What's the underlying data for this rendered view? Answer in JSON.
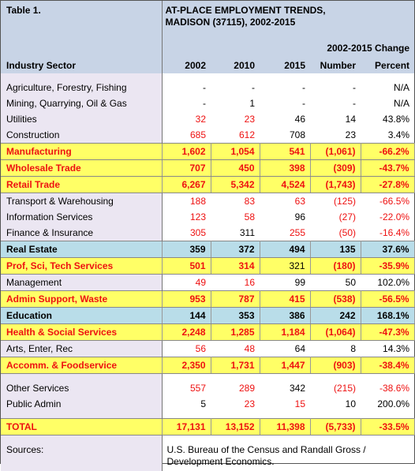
{
  "header": {
    "label": "Table 1.",
    "title": [
      "AT-PLACE EMPLOYMENT TRENDS,",
      "MADISON (37115), 2002-2015"
    ],
    "change": "2002-2015 Change",
    "columns": [
      "Industry Sector",
      "2002",
      "2010",
      "2015",
      "Number",
      "Percent"
    ]
  },
  "groups": [
    [
      {
        "cells": [
          "Agriculture, Forestry, Fishing",
          "-",
          "-",
          "-",
          "-",
          "N/A"
        ],
        "style": "plain",
        "red": []
      },
      {
        "cells": [
          "Mining, Quarrying, Oil & Gas",
          "-",
          "1",
          "-",
          "-",
          "N/A"
        ],
        "style": "plain",
        "red": []
      },
      {
        "cells": [
          "Utilities",
          "32",
          "23",
          "46",
          "14",
          "43.8%"
        ],
        "style": "plain",
        "red": [
          1,
          2
        ]
      },
      {
        "cells": [
          "Construction",
          "685",
          "612",
          "708",
          "23",
          "3.4%"
        ],
        "style": "plain",
        "red": [
          1,
          2
        ]
      },
      {
        "cells": [
          "Manufacturing",
          "1,602",
          "1,054",
          "541",
          "(1,061)",
          "-66.2%"
        ],
        "style": "yellow",
        "red": [
          0,
          1,
          2,
          3,
          4,
          5
        ]
      },
      {
        "cells": [
          "Wholesale Trade",
          "707",
          "450",
          "398",
          "(309)",
          "-43.7%"
        ],
        "style": "yellow",
        "red": [
          0,
          1,
          2,
          3,
          4,
          5
        ]
      },
      {
        "cells": [
          "Retail Trade",
          "6,267",
          "5,342",
          "4,524",
          "(1,743)",
          "-27.8%"
        ],
        "style": "yellow",
        "red": [
          0,
          1,
          2,
          3,
          4,
          5
        ]
      },
      {
        "cells": [
          "Transport & Warehousing",
          "188",
          "83",
          "63",
          "(125)",
          "-66.5%"
        ],
        "style": "plain",
        "red": [
          1,
          2,
          3,
          4,
          5
        ]
      },
      {
        "cells": [
          "Information Services",
          "123",
          "58",
          "96",
          "(27)",
          "-22.0%"
        ],
        "style": "plain",
        "red": [
          1,
          2,
          4,
          5
        ]
      },
      {
        "cells": [
          "Finance & Insurance",
          "305",
          "311",
          "255",
          "(50)",
          "-16.4%"
        ],
        "style": "plain",
        "red": [
          1,
          3,
          4,
          5
        ]
      },
      {
        "cells": [
          "Real Estate",
          "359",
          "372",
          "494",
          "135",
          "37.6%"
        ],
        "style": "blue",
        "red": []
      },
      {
        "cells": [
          "Prof, Sci, Tech Services",
          "501",
          "314",
          "321",
          "(180)",
          "-35.9%"
        ],
        "style": "yellow",
        "red": [
          0,
          1,
          2,
          4,
          5
        ]
      },
      {
        "cells": [
          "Management",
          "49",
          "16",
          "99",
          "50",
          "102.0%"
        ],
        "style": "plain",
        "red": [
          1,
          2
        ]
      },
      {
        "cells": [
          "Admin Support, Waste",
          "953",
          "787",
          "415",
          "(538)",
          "-56.5%"
        ],
        "style": "yellow",
        "red": [
          0,
          1,
          2,
          3,
          4,
          5
        ]
      },
      {
        "cells": [
          "Education",
          "144",
          "353",
          "386",
          "242",
          "168.1%"
        ],
        "style": "blue",
        "red": []
      },
      {
        "cells": [
          "Health & Social Services",
          "2,248",
          "1,285",
          "1,184",
          "(1,064)",
          "-47.3%"
        ],
        "style": "yellow",
        "red": [
          0,
          1,
          2,
          3,
          4,
          5
        ]
      },
      {
        "cells": [
          "Arts, Enter, Rec",
          "56",
          "48",
          "64",
          "8",
          "14.3%"
        ],
        "style": "plain",
        "red": [
          1,
          2
        ]
      },
      {
        "cells": [
          "Accomm. & Foodservice",
          "2,350",
          "1,731",
          "1,447",
          "(903)",
          "-38.4%"
        ],
        "style": "yellow",
        "red": [
          0,
          1,
          2,
          3,
          4,
          5
        ]
      }
    ],
    [
      {
        "cells": [
          "Other Services",
          "557",
          "289",
          "342",
          "(215)",
          "-38.6%"
        ],
        "style": "plain",
        "red": [
          1,
          2,
          4,
          5
        ]
      },
      {
        "cells": [
          "Public Admin",
          "5",
          "23",
          "15",
          "10",
          "200.0%"
        ],
        "style": "plain",
        "red": [
          2,
          3
        ]
      }
    ],
    [
      {
        "cells": [
          "TOTAL",
          "17,131",
          "13,152",
          "11,398",
          "(5,733)",
          "-33.5%"
        ],
        "style": "yellow",
        "red": [
          0,
          1,
          2,
          3,
          4,
          5
        ]
      }
    ]
  ],
  "sources": {
    "label": "Sources:",
    "text": [
      "U.S. Bureau of the Census and Randall Gross /",
      "Development Economics."
    ]
  }
}
